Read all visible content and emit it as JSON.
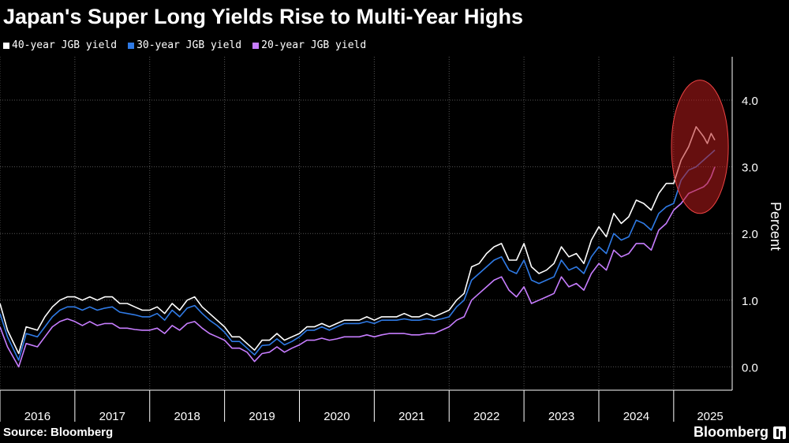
{
  "title": "Japan's Super Long Yields Rise to Multi-Year Highs",
  "source": "Source: Bloomberg",
  "brand": "Bloomberg",
  "legend": [
    {
      "name": "40-year JGB yield",
      "color": "#ffffff"
    },
    {
      "name": "30-year JGB yield",
      "color": "#2f7ae5"
    },
    {
      "name": "20-year JGB yield",
      "color": "#c77dff"
    }
  ],
  "chart_data": {
    "type": "line",
    "ylabel": "Percent",
    "ylim": [
      -0.35,
      4.65
    ],
    "yticks": [
      "0.0",
      "1.0",
      "2.0",
      "3.0",
      "4.0"
    ],
    "ytick_values": [
      0,
      1,
      2,
      3,
      4
    ],
    "xlim": [
      2016.0,
      2025.75
    ],
    "xticks": [
      "2016",
      "2017",
      "2018",
      "2019",
      "2020",
      "2021",
      "2022",
      "2023",
      "2024",
      "2025"
    ],
    "xtick_values": [
      2016,
      2017,
      2018,
      2019,
      2020,
      2021,
      2022,
      2023,
      2024,
      2025
    ],
    "grid": true,
    "legend_position": "top-left",
    "series": [
      {
        "name": "40-year JGB yield",
        "color": "#ffffff",
        "x": [
          2016.0,
          2016.1,
          2016.25,
          2016.35,
          2016.5,
          2016.6,
          2016.7,
          2016.8,
          2016.9,
          2017.0,
          2017.1,
          2017.2,
          2017.3,
          2017.4,
          2017.5,
          2017.6,
          2017.7,
          2017.8,
          2017.9,
          2018.0,
          2018.1,
          2018.2,
          2018.3,
          2018.4,
          2018.5,
          2018.6,
          2018.7,
          2018.8,
          2018.9,
          2019.0,
          2019.1,
          2019.2,
          2019.3,
          2019.4,
          2019.5,
          2019.6,
          2019.7,
          2019.8,
          2019.9,
          2020.0,
          2020.1,
          2020.2,
          2020.3,
          2020.4,
          2020.5,
          2020.6,
          2020.7,
          2020.8,
          2020.9,
          2021.0,
          2021.1,
          2021.2,
          2021.3,
          2021.4,
          2021.5,
          2021.6,
          2021.7,
          2021.8,
          2021.9,
          2022.0,
          2022.1,
          2022.2,
          2022.3,
          2022.4,
          2022.5,
          2022.6,
          2022.7,
          2022.8,
          2022.9,
          2023.0,
          2023.1,
          2023.2,
          2023.3,
          2023.4,
          2023.5,
          2023.6,
          2023.7,
          2023.8,
          2023.9,
          2024.0,
          2024.1,
          2024.2,
          2024.3,
          2024.4,
          2024.5,
          2024.6,
          2024.7,
          2024.8,
          2024.9,
          2025.0,
          2025.1,
          2025.2,
          2025.3,
          2025.4,
          2025.45,
          2025.5,
          2025.55
        ],
        "values": [
          0.95,
          0.55,
          0.2,
          0.6,
          0.55,
          0.75,
          0.9,
          1.0,
          1.05,
          1.05,
          1.0,
          1.05,
          1.0,
          1.05,
          1.05,
          0.95,
          0.95,
          0.9,
          0.85,
          0.85,
          0.9,
          0.8,
          0.95,
          0.85,
          1.0,
          1.05,
          0.9,
          0.8,
          0.7,
          0.6,
          0.45,
          0.45,
          0.35,
          0.25,
          0.4,
          0.4,
          0.5,
          0.4,
          0.45,
          0.5,
          0.6,
          0.6,
          0.65,
          0.6,
          0.65,
          0.7,
          0.7,
          0.7,
          0.75,
          0.7,
          0.75,
          0.75,
          0.75,
          0.8,
          0.75,
          0.75,
          0.8,
          0.75,
          0.8,
          0.85,
          1.0,
          1.1,
          1.5,
          1.55,
          1.7,
          1.8,
          1.85,
          1.6,
          1.6,
          1.85,
          1.5,
          1.4,
          1.45,
          1.55,
          1.8,
          1.65,
          1.7,
          1.55,
          1.9,
          2.1,
          1.95,
          2.3,
          2.15,
          2.25,
          2.5,
          2.45,
          2.35,
          2.6,
          2.75,
          2.75,
          3.1,
          3.3,
          3.6,
          3.45,
          3.35,
          3.5,
          3.4
        ]
      },
      {
        "name": "30-year JGB yield",
        "color": "#2f7ae5",
        "x": [
          2016.0,
          2016.1,
          2016.25,
          2016.35,
          2016.5,
          2016.6,
          2016.7,
          2016.8,
          2016.9,
          2017.0,
          2017.1,
          2017.2,
          2017.3,
          2017.4,
          2017.5,
          2017.6,
          2017.7,
          2017.8,
          2017.9,
          2018.0,
          2018.1,
          2018.2,
          2018.3,
          2018.4,
          2018.5,
          2018.6,
          2018.7,
          2018.8,
          2018.9,
          2019.0,
          2019.1,
          2019.2,
          2019.3,
          2019.4,
          2019.5,
          2019.6,
          2019.7,
          2019.8,
          2019.9,
          2020.0,
          2020.1,
          2020.2,
          2020.3,
          2020.4,
          2020.5,
          2020.6,
          2020.7,
          2020.8,
          2020.9,
          2021.0,
          2021.1,
          2021.2,
          2021.3,
          2021.4,
          2021.5,
          2021.6,
          2021.7,
          2021.8,
          2021.9,
          2022.0,
          2022.1,
          2022.2,
          2022.3,
          2022.4,
          2022.5,
          2022.6,
          2022.7,
          2022.8,
          2022.9,
          2023.0,
          2023.1,
          2023.2,
          2023.3,
          2023.4,
          2023.5,
          2023.6,
          2023.7,
          2023.8,
          2023.9,
          2024.0,
          2024.1,
          2024.2,
          2024.3,
          2024.4,
          2024.5,
          2024.6,
          2024.7,
          2024.8,
          2024.9,
          2025.0,
          2025.1,
          2025.2,
          2025.3,
          2025.4,
          2025.45,
          2025.5,
          2025.55
        ],
        "values": [
          0.8,
          0.45,
          0.1,
          0.5,
          0.45,
          0.6,
          0.75,
          0.85,
          0.9,
          0.9,
          0.85,
          0.9,
          0.85,
          0.88,
          0.9,
          0.82,
          0.8,
          0.78,
          0.75,
          0.75,
          0.8,
          0.7,
          0.85,
          0.75,
          0.88,
          0.92,
          0.8,
          0.7,
          0.62,
          0.52,
          0.38,
          0.38,
          0.28,
          0.18,
          0.32,
          0.33,
          0.42,
          0.33,
          0.38,
          0.45,
          0.55,
          0.55,
          0.6,
          0.55,
          0.6,
          0.65,
          0.65,
          0.65,
          0.68,
          0.65,
          0.7,
          0.7,
          0.7,
          0.72,
          0.7,
          0.7,
          0.72,
          0.7,
          0.72,
          0.75,
          0.9,
          1.0,
          1.3,
          1.4,
          1.5,
          1.6,
          1.65,
          1.45,
          1.4,
          1.6,
          1.3,
          1.25,
          1.3,
          1.35,
          1.6,
          1.45,
          1.5,
          1.4,
          1.65,
          1.8,
          1.7,
          2.0,
          1.9,
          1.95,
          2.2,
          2.15,
          2.05,
          2.3,
          2.4,
          2.45,
          2.8,
          2.95,
          3.0,
          3.1,
          3.15,
          3.2,
          3.25
        ]
      },
      {
        "name": "20-year JGB yield",
        "color": "#c77dff",
        "x": [
          2016.0,
          2016.1,
          2016.25,
          2016.35,
          2016.5,
          2016.6,
          2016.7,
          2016.8,
          2016.9,
          2017.0,
          2017.1,
          2017.2,
          2017.3,
          2017.4,
          2017.5,
          2017.6,
          2017.7,
          2017.8,
          2017.9,
          2018.0,
          2018.1,
          2018.2,
          2018.3,
          2018.4,
          2018.5,
          2018.6,
          2018.7,
          2018.8,
          2018.9,
          2019.0,
          2019.1,
          2019.2,
          2019.3,
          2019.4,
          2019.5,
          2019.6,
          2019.7,
          2019.8,
          2019.9,
          2020.0,
          2020.1,
          2020.2,
          2020.3,
          2020.4,
          2020.5,
          2020.6,
          2020.7,
          2020.8,
          2020.9,
          2021.0,
          2021.1,
          2021.2,
          2021.3,
          2021.4,
          2021.5,
          2021.6,
          2021.7,
          2021.8,
          2021.9,
          2022.0,
          2022.1,
          2022.2,
          2022.3,
          2022.4,
          2022.5,
          2022.6,
          2022.7,
          2022.8,
          2022.9,
          2023.0,
          2023.1,
          2023.2,
          2023.3,
          2023.4,
          2023.5,
          2023.6,
          2023.7,
          2023.8,
          2023.9,
          2024.0,
          2024.1,
          2024.2,
          2024.3,
          2024.4,
          2024.5,
          2024.6,
          2024.7,
          2024.8,
          2024.9,
          2025.0,
          2025.1,
          2025.2,
          2025.3,
          2025.4,
          2025.45,
          2025.5,
          2025.55
        ],
        "values": [
          0.6,
          0.3,
          0.0,
          0.35,
          0.3,
          0.45,
          0.6,
          0.68,
          0.72,
          0.68,
          0.62,
          0.68,
          0.62,
          0.65,
          0.65,
          0.58,
          0.58,
          0.56,
          0.55,
          0.55,
          0.58,
          0.5,
          0.62,
          0.55,
          0.65,
          0.68,
          0.58,
          0.5,
          0.45,
          0.4,
          0.28,
          0.28,
          0.22,
          0.08,
          0.2,
          0.22,
          0.3,
          0.22,
          0.28,
          0.33,
          0.4,
          0.4,
          0.43,
          0.4,
          0.42,
          0.45,
          0.45,
          0.45,
          0.48,
          0.45,
          0.48,
          0.5,
          0.5,
          0.5,
          0.48,
          0.48,
          0.5,
          0.5,
          0.55,
          0.6,
          0.7,
          0.75,
          1.0,
          1.1,
          1.2,
          1.3,
          1.35,
          1.15,
          1.05,
          1.2,
          0.95,
          1.0,
          1.05,
          1.1,
          1.35,
          1.2,
          1.25,
          1.15,
          1.4,
          1.55,
          1.45,
          1.75,
          1.65,
          1.7,
          1.85,
          1.85,
          1.75,
          2.05,
          2.15,
          2.35,
          2.45,
          2.6,
          2.65,
          2.7,
          2.75,
          2.85,
          3.0
        ]
      }
    ],
    "highlight": {
      "shape": "ellipse",
      "color": "#b91c1c",
      "x_center": 2025.35,
      "y_center": 3.3,
      "x_radius": 0.38,
      "y_radius": 1.0
    }
  }
}
